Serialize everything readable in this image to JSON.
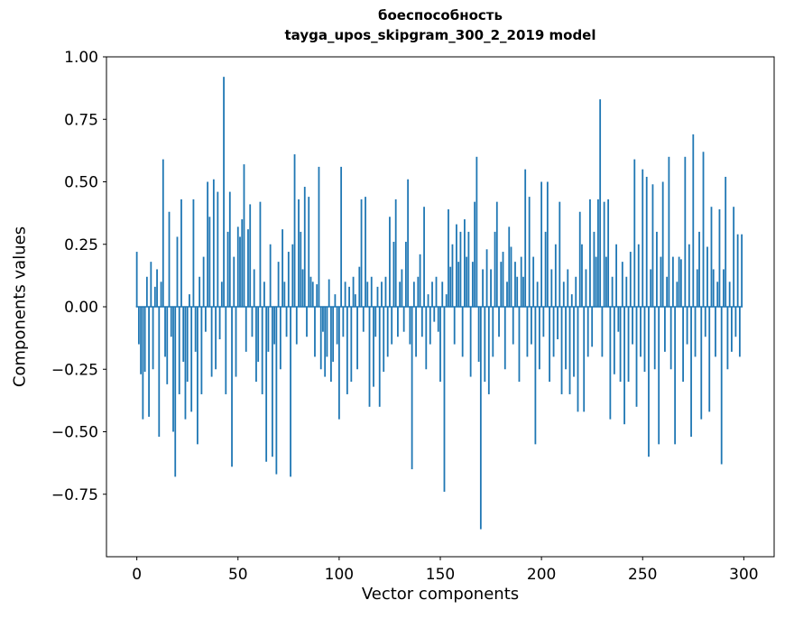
{
  "chart_data": {
    "type": "bar",
    "title": "боеспособность",
    "subtitle": "tayga_upos_skipgram_300_2_2019 model",
    "xlabel": "Vector components",
    "ylabel": "Components values",
    "xlim": [
      -15,
      315
    ],
    "ylim": [
      -1.0,
      1.0
    ],
    "xticks": [
      0,
      50,
      100,
      150,
      200,
      250,
      300
    ],
    "yticks": [
      1.0,
      0.75,
      0.5,
      0.25,
      0.0,
      -0.25,
      -0.5,
      -0.75
    ],
    "bar_color": "#1f77b4",
    "n_components": 300,
    "values": [
      0.22,
      -0.15,
      -0.27,
      -0.45,
      -0.26,
      0.12,
      -0.44,
      0.18,
      -0.25,
      0.08,
      0.15,
      -0.52,
      0.1,
      0.59,
      -0.2,
      -0.31,
      0.38,
      -0.12,
      -0.5,
      -0.68,
      0.28,
      -0.35,
      0.43,
      -0.22,
      -0.45,
      -0.3,
      0.05,
      -0.42,
      0.43,
      -0.18,
      -0.55,
      0.12,
      -0.35,
      0.2,
      -0.1,
      0.5,
      0.36,
      -0.28,
      0.51,
      -0.25,
      0.46,
      -0.13,
      0.1,
      0.92,
      -0.35,
      0.3,
      0.46,
      -0.64,
      0.2,
      -0.28,
      0.32,
      0.28,
      0.35,
      0.57,
      -0.18,
      0.31,
      0.41,
      -0.12,
      0.15,
      -0.3,
      -0.22,
      0.42,
      -0.35,
      0.1,
      -0.62,
      -0.18,
      0.25,
      -0.6,
      -0.15,
      -0.67,
      0.18,
      -0.25,
      0.31,
      0.1,
      -0.12,
      0.22,
      -0.68,
      0.25,
      0.61,
      -0.15,
      0.43,
      0.3,
      0.15,
      0.48,
      -0.12,
      0.44,
      0.12,
      0.1,
      -0.2,
      0.09,
      0.56,
      -0.25,
      -0.1,
      -0.28,
      -0.2,
      0.11,
      -0.3,
      -0.22,
      0.05,
      -0.15,
      -0.45,
      0.56,
      -0.12,
      0.1,
      -0.35,
      0.08,
      -0.3,
      0.12,
      0.05,
      -0.25,
      0.16,
      0.43,
      -0.1,
      0.44,
      0.1,
      -0.4,
      0.12,
      -0.32,
      -0.12,
      0.08,
      -0.4,
      0.1,
      -0.26,
      0.12,
      -0.2,
      0.36,
      -0.15,
      0.26,
      0.43,
      -0.12,
      0.1,
      0.15,
      -0.1,
      0.26,
      0.51,
      -0.15,
      -0.65,
      0.1,
      -0.2,
      0.12,
      0.21,
      -0.12,
      0.4,
      -0.25,
      0.05,
      -0.15,
      0.1,
      -0.06,
      0.12,
      -0.1,
      -0.3,
      0.1,
      -0.74,
      0.05,
      0.39,
      0.16,
      0.25,
      -0.15,
      0.33,
      0.18,
      0.3,
      -0.2,
      0.35,
      0.2,
      0.3,
      -0.28,
      0.18,
      0.42,
      0.6,
      -0.22,
      -0.89,
      0.15,
      -0.3,
      0.23,
      -0.35,
      0.15,
      -0.2,
      0.3,
      0.42,
      -0.12,
      0.18,
      0.22,
      -0.25,
      0.1,
      0.32,
      0.24,
      -0.15,
      0.18,
      0.12,
      -0.3,
      0.2,
      0.12,
      0.55,
      -0.2,
      0.44,
      -0.15,
      0.2,
      -0.55,
      0.1,
      -0.25,
      0.5,
      -0.12,
      0.3,
      0.5,
      -0.3,
      0.15,
      -0.2,
      0.25,
      -0.13,
      0.42,
      -0.35,
      0.1,
      -0.25,
      0.15,
      -0.35,
      0.05,
      -0.28,
      0.12,
      -0.42,
      0.38,
      0.25,
      -0.42,
      0.15,
      -0.2,
      0.43,
      -0.16,
      0.3,
      0.2,
      0.43,
      0.83,
      -0.2,
      0.42,
      0.2,
      0.43,
      -0.45,
      0.12,
      -0.27,
      0.25,
      -0.1,
      -0.3,
      0.18,
      -0.47,
      0.12,
      -0.3,
      0.22,
      -0.15,
      0.59,
      -0.4,
      0.25,
      -0.2,
      0.55,
      -0.26,
      0.52,
      -0.6,
      0.15,
      0.49,
      -0.25,
      0.3,
      -0.55,
      0.2,
      0.5,
      -0.18,
      0.12,
      0.6,
      -0.25,
      0.2,
      -0.55,
      0.1,
      0.2,
      0.19,
      -0.3,
      0.6,
      -0.15,
      0.25,
      -0.52,
      0.69,
      -0.2,
      0.15,
      0.3,
      -0.45,
      0.62,
      -0.12,
      0.24,
      -0.42,
      0.4,
      0.15,
      -0.2,
      0.1,
      0.39,
      -0.63,
      0.15,
      0.52,
      -0.25,
      0.1,
      -0.18,
      0.4,
      -0.12,
      0.29,
      -0.2,
      0.29
    ]
  }
}
